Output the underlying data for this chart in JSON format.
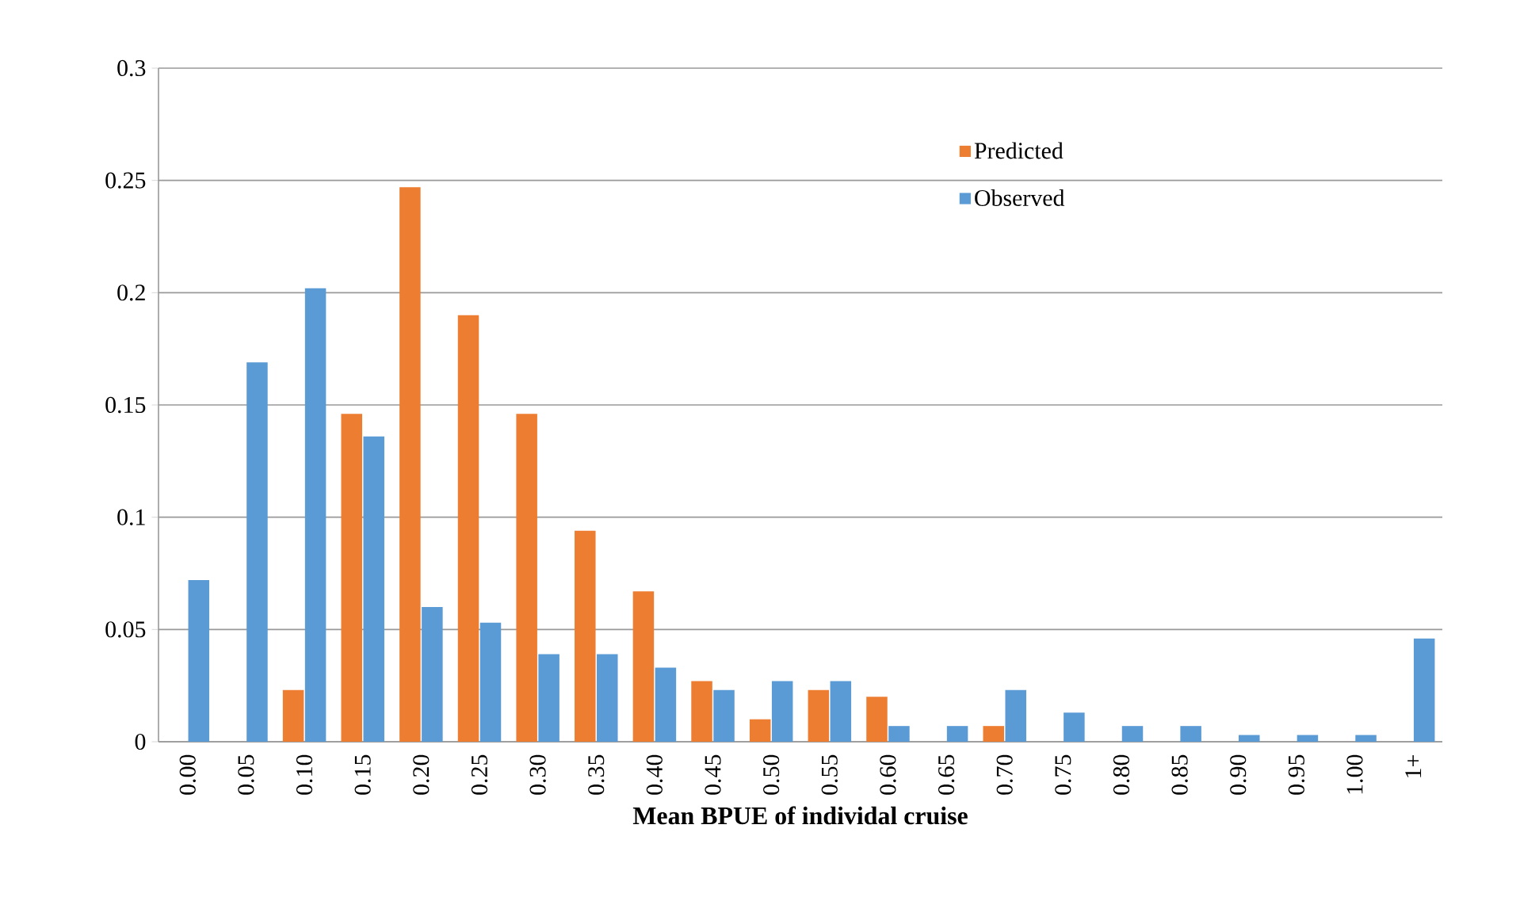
{
  "chart_data": {
    "type": "bar",
    "xlabel": "**Mean BPUE of individal cruise**",
    "categories": [
      "0.00",
      "0.05",
      "0.10",
      "0.15",
      "0.20",
      "0.25",
      "0.30",
      "0.35",
      "0.40",
      "0.45",
      "0.50",
      "0.55",
      "0.60",
      "0.65",
      "0.70",
      "0.75",
      "0.80",
      "0.85",
      "0.90",
      "0.95",
      "1.00",
      "1+"
    ],
    "series": [
      {
        "name": "Predicted",
        "color": "#ed7d31",
        "values": [
          null,
          null,
          0.023,
          0.146,
          0.247,
          0.19,
          0.146,
          0.094,
          0.067,
          0.027,
          0.01,
          0.023,
          0.02,
          null,
          0.007,
          null,
          null,
          null,
          null,
          null,
          null,
          null
        ]
      },
      {
        "name": "Observed",
        "color": "#5b9bd5",
        "values": [
          0.072,
          0.169,
          0.202,
          0.136,
          0.06,
          0.053,
          0.039,
          0.039,
          0.033,
          0.023,
          0.027,
          0.027,
          0.007,
          0.007,
          0.023,
          0.013,
          0.007,
          0.007,
          0.003,
          0.003,
          0.003,
          0.046
        ]
      }
    ],
    "ylim": [
      0,
      0.3
    ],
    "yticks": [
      0,
      0.05,
      0.1,
      0.15,
      0.2,
      0.25,
      0.3
    ],
    "grid": "y",
    "legend": "top right"
  }
}
